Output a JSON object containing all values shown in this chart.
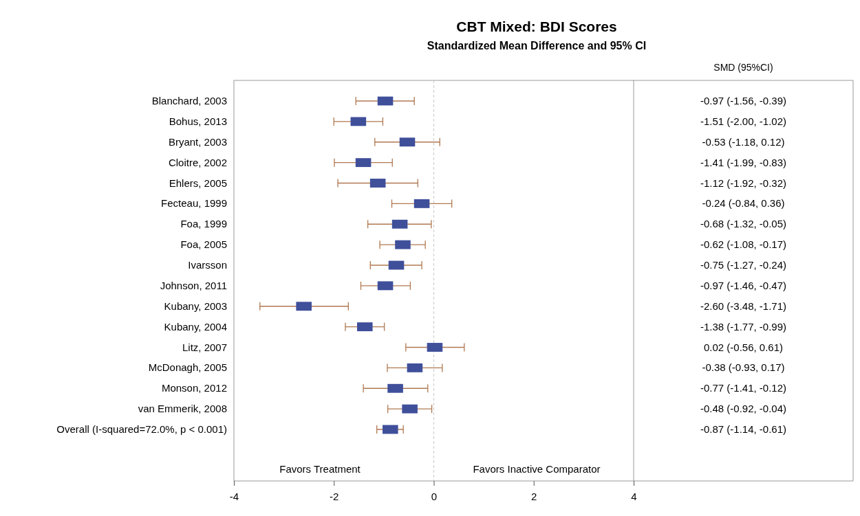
{
  "chart_data": {
    "type": "scatter",
    "orientation": "horizontal",
    "title": "CBT Mixed: BDI Scores",
    "subtitle": "Standardized Mean Difference and 95% CI",
    "categories": [
      "Blanchard, 2003",
      "Bohus, 2013",
      "Bryant, 2003",
      "Cloitre, 2002",
      "Ehlers, 2005",
      "Fecteau, 1999",
      "Foa, 1999",
      "Foa, 2005",
      "Ivarsson",
      "Johnson, 2011",
      "Kubany, 2003",
      "Kubany, 2004",
      "Litz, 2007",
      "McDonagh, 2005",
      "Monson, 2012",
      "van Emmerik, 2008",
      "Overall (I-squared=72.0%, p < 0.001)"
    ],
    "values": [
      -0.97,
      -1.51,
      -0.53,
      -1.41,
      -1.12,
      -0.24,
      -0.68,
      -0.62,
      -0.75,
      -0.97,
      -2.6,
      -1.38,
      0.02,
      -0.38,
      -0.77,
      -0.48,
      -0.87
    ],
    "errors": [
      [
        -1.56,
        -0.39
      ],
      [
        -2.0,
        -1.02
      ],
      [
        -1.18,
        0.12
      ],
      [
        -1.99,
        -0.83
      ],
      [
        -1.92,
        -0.32
      ],
      [
        -0.84,
        0.36
      ],
      [
        -1.32,
        -0.05
      ],
      [
        -1.08,
        -0.17
      ],
      [
        -1.27,
        -0.24
      ],
      [
        -1.46,
        -0.47
      ],
      [
        -3.48,
        -1.71
      ],
      [
        -1.77,
        -0.99
      ],
      [
        -0.56,
        0.61
      ],
      [
        -0.93,
        0.17
      ],
      [
        -1.41,
        -0.12
      ],
      [
        -0.92,
        -0.04
      ],
      [
        -1.14,
        -0.61
      ]
    ],
    "value_labels": [
      "-0.97 (-1.56, -0.39)",
      "-1.51 (-2.00, -1.02)",
      "-0.53 (-1.18, 0.12)",
      "-1.41 (-1.99, -0.83)",
      "-1.12 (-1.92, -0.32)",
      "-0.24 (-0.84, 0.36)",
      "-0.68 (-1.32, -0.05)",
      "-0.62 (-1.08, -0.17)",
      "-0.75 (-1.27, -0.24)",
      "-0.97 (-1.46, -0.47)",
      "-2.60 (-3.48, -1.71)",
      "-1.38 (-1.77, -0.99)",
      "0.02 (-0.56, 0.61)",
      "-0.38 (-0.93, 0.17)",
      "-0.77 (-1.41, -0.12)",
      "-0.48 (-0.92, -0.04)",
      "-0.87 (-1.14, -0.61)"
    ],
    "color": "#3f4f9a",
    "marker": "square",
    "xlim": [
      -4,
      4
    ],
    "xticks": [
      -4,
      -2,
      0,
      2,
      4
    ],
    "ref_lines": [
      {
        "axis": "x",
        "value": 0,
        "color": "#c8c8c8",
        "line_style": "dashed"
      }
    ],
    "annotations": [
      "SMD (95%CI)",
      "Favors Treatment",
      "Favors Inactive Comparator"
    ],
    "grid": false
  }
}
